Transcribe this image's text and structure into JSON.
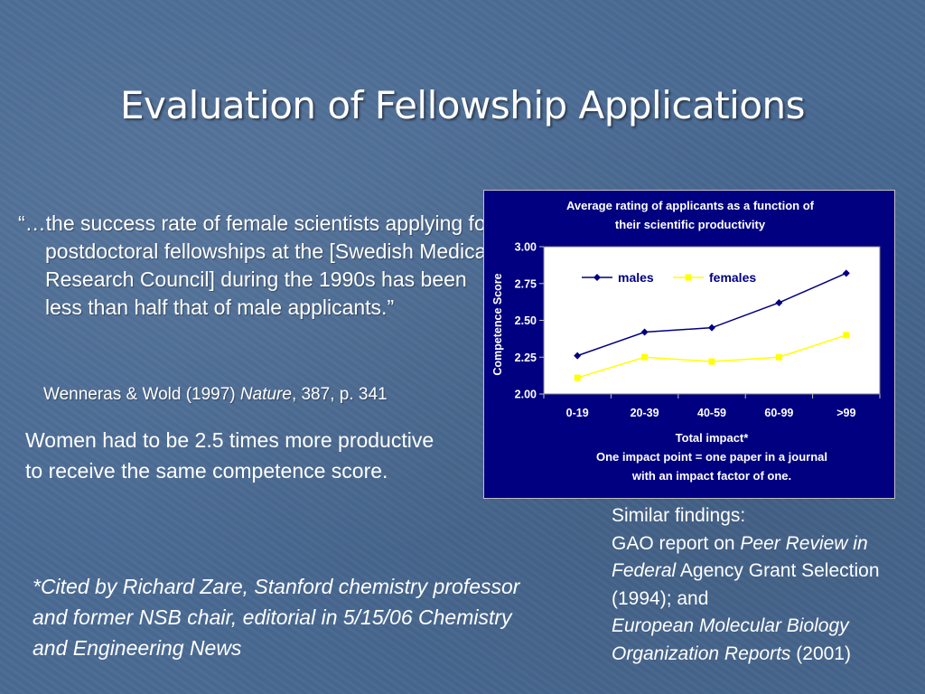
{
  "slide": {
    "title": "Evaluation of Fellowship Applications",
    "quote": "“…the success rate of female scientists applying for postdoctoral fellowships at the [Swedish Medical Research Council] during the 1990s has been less than half that of male applicants.”",
    "citation": {
      "authors": "Wenneras & Wold (1997) ",
      "journal": "Nature",
      "rest": ", 387, p. 341"
    },
    "finding": "Women had to be 2.5 times more productive to receive the same competence score.",
    "footnote": "*Cited by Richard Zare, Stanford chemistry professor and former NSB chair, editorial in 5/15/06 Chemistry and Engineering News",
    "similar": {
      "line1": "Similar findings:",
      "gao_prefix": "GAO report on ",
      "gao_title": "Peer Review in Federal",
      "gao_suffix": " Agency Grant Selection (1994); and",
      "embo_title": "European Molecular Biology Organization Reports",
      "embo_year": " (2001)"
    }
  },
  "chart_data": {
    "type": "line",
    "title": "Average rating of applicants as a function of their scientific productivity",
    "title_lines": [
      "Average rating of applicants as a function of",
      "their scientific productivity"
    ],
    "xlabel": "Total impact*",
    "xlabel_note_lines": [
      "One impact point = one paper in a journal",
      "with an impact factor of one."
    ],
    "ylabel": "Competence Score",
    "categories": [
      "0-19",
      "20-39",
      "40-59",
      "60-99",
      ">99"
    ],
    "ylim": [
      2.0,
      3.0
    ],
    "yticks": [
      "2.00",
      "2.25",
      "2.50",
      "2.75",
      "3.00"
    ],
    "legend_position": "top",
    "series": [
      {
        "name": "males",
        "values": [
          2.26,
          2.42,
          2.45,
          2.62,
          2.82
        ],
        "color": "#000080",
        "marker": "diamond"
      },
      {
        "name": "females",
        "values": [
          2.11,
          2.25,
          2.22,
          2.25,
          2.4
        ],
        "color": "#ffff00",
        "marker": "square"
      }
    ],
    "colors": {
      "background": "#000080",
      "plot_area": "#ffffff",
      "text": "#ffffff"
    }
  }
}
